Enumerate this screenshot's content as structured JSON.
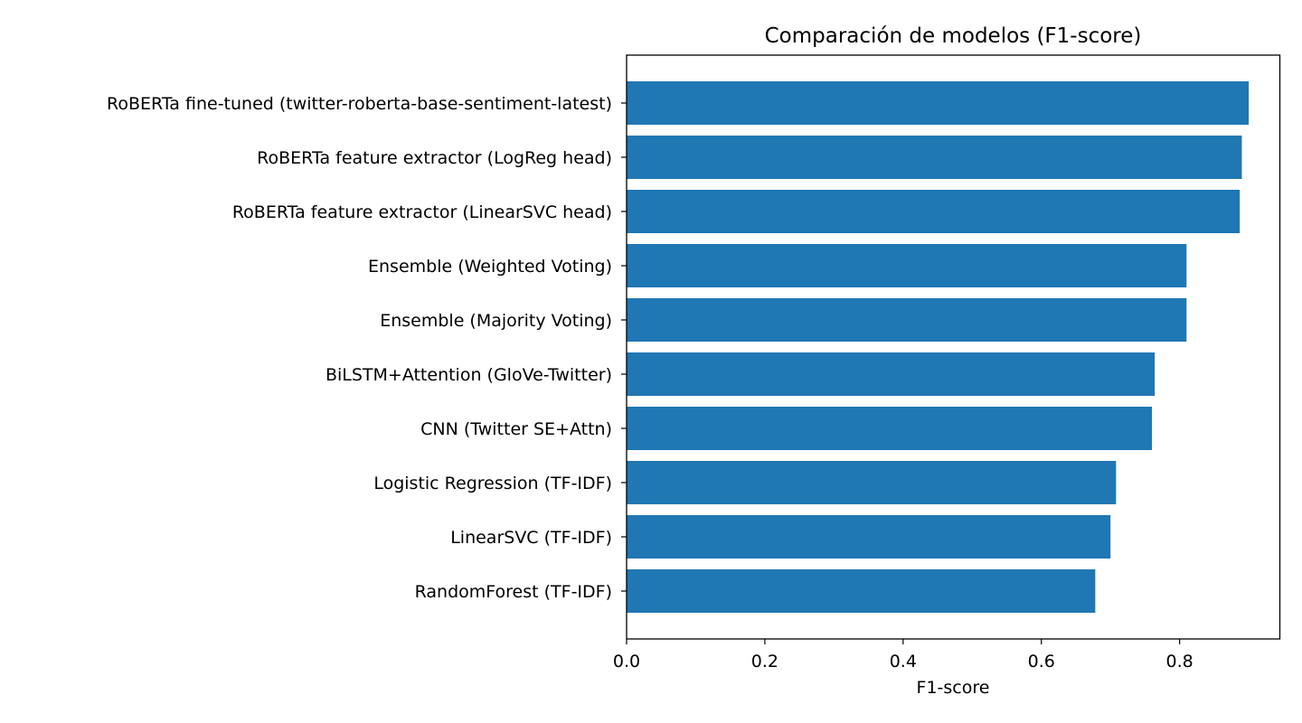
{
  "chart_data": {
    "type": "bar",
    "orientation": "horizontal",
    "title": "Comparación de modelos (F1-score)",
    "xlabel": "F1-score",
    "ylabel": "",
    "xlim": [
      0,
      0.945
    ],
    "xticks": [
      0.0,
      0.2,
      0.4,
      0.6,
      0.8
    ],
    "xtick_labels": [
      "0.0",
      "0.2",
      "0.4",
      "0.6",
      "0.8"
    ],
    "grid": false,
    "bar_color": "#1f77b4",
    "categories": [
      "RoBERTa fine-tuned (twitter-roberta-base-sentiment-latest)",
      "RoBERTa feature extractor (LogReg head)",
      "RoBERTa feature extractor (LinearSVC head)",
      "Ensemble (Weighted Voting)",
      "Ensemble (Majority Voting)",
      "BiLSTM+Attention (GloVe-Twitter)",
      "CNN (Twitter SE+Attn)",
      "Logistic Regression (TF-IDF)",
      "LinearSVC (TF-IDF)",
      "RandomForest (TF-IDF)"
    ],
    "values": [
      0.9,
      0.89,
      0.887,
      0.81,
      0.81,
      0.764,
      0.76,
      0.708,
      0.7,
      0.678
    ]
  }
}
